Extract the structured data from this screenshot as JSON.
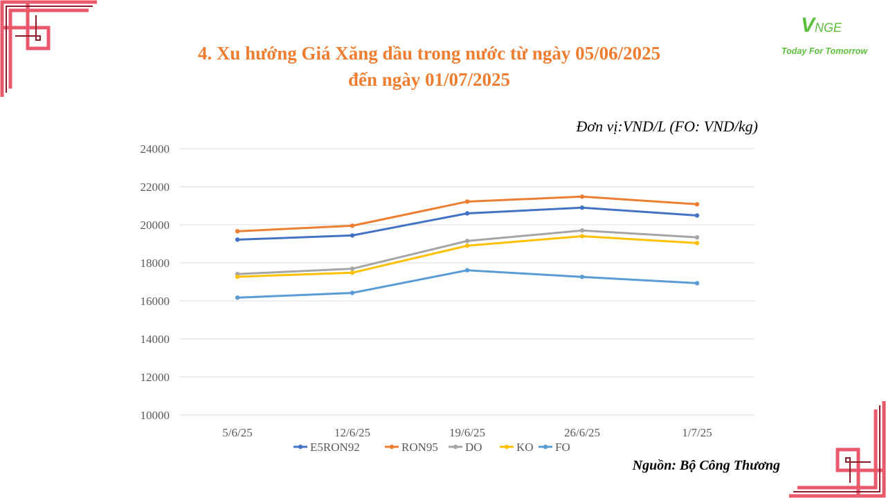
{
  "header": {
    "title_line1": "4. Xu hướng Giá Xăng dầu trong nước từ ngày 05/06/2025",
    "title_line2": "đến ngày 01/07/2025",
    "logo_mark": "V",
    "logo_mark_rest": "NGE",
    "logo_tagline": "Today For Tomorrow"
  },
  "decor": {
    "corner_color_outer": "#E8596B",
    "corner_color_inner": "#8B1A2B"
  },
  "unit_label": "Đơn vị:VND/L (FO: VND/kg)",
  "source_label": "Nguồn: Bộ Công Thương",
  "chart_data": {
    "type": "line",
    "categories": [
      "5/6/25",
      "12/6/25",
      "19/6/25",
      "26/6/25",
      "1/7/25"
    ],
    "ylim": [
      10000,
      24000
    ],
    "yticks": [
      10000,
      12000,
      14000,
      16000,
      18000,
      20000,
      22000,
      24000
    ],
    "grid": true,
    "legend_position": "bottom",
    "series": [
      {
        "name": "E5RON92",
        "color": "#4472C4",
        "values": [
          19220,
          19440,
          20600,
          20900,
          20490
        ]
      },
      {
        "name": "RON95",
        "color": "#ED7D31",
        "values": [
          19660,
          19950,
          21220,
          21480,
          21080
        ]
      },
      {
        "name": "DO",
        "color": "#A5A5A5",
        "values": [
          17410,
          17690,
          19150,
          19700,
          19340
        ]
      },
      {
        "name": "KO",
        "color": "#FFC000",
        "values": [
          17270,
          17480,
          18900,
          19400,
          19040
        ]
      },
      {
        "name": "FO",
        "color": "#5B9BD5",
        "values": [
          16170,
          16420,
          17610,
          17260,
          16930
        ]
      }
    ]
  }
}
